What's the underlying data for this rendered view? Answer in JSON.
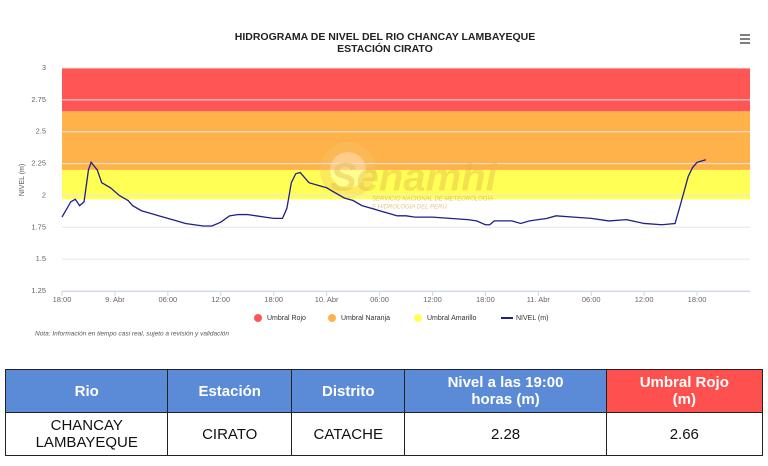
{
  "chart_data": {
    "type": "line",
    "title": "HIDROGRAMA DE NIVEL DEL RIO CHANCAY LAMBAYEQUE",
    "subtitle": "ESTACIÓN CIRATO",
    "y_label": "NIVEL (m)",
    "note": "Nota: Información en tiempo casi real, sujeto a revisión y validación",
    "watermark": [
      "Senamhi",
      "SERVICIO NACIONAL DE METEOROLOGÍA",
      "E HIDROLOGÍA DEL PERÚ"
    ],
    "ylim": [
      1.25,
      3
    ],
    "yticks": [
      1.25,
      1.5,
      1.75,
      2,
      2.25,
      2.5,
      2.75,
      3
    ],
    "xlim": [
      0,
      78
    ],
    "xticks": [
      {
        "value": 0,
        "label": "18:00"
      },
      {
        "value": 6,
        "label": "9. Abr"
      },
      {
        "value": 12,
        "label": "06:00"
      },
      {
        "value": 18,
        "label": "12:00"
      },
      {
        "value": 24,
        "label": "18:00"
      },
      {
        "value": 30,
        "label": "10. Abr"
      },
      {
        "value": 36,
        "label": "06:00"
      },
      {
        "value": 42,
        "label": "12:00"
      },
      {
        "value": 48,
        "label": "18:00"
      },
      {
        "value": 54,
        "label": "11. Abr"
      },
      {
        "value": 60,
        "label": "06:00"
      },
      {
        "value": 66,
        "label": "12:00"
      },
      {
        "value": 72,
        "label": "18:00"
      }
    ],
    "grid": true,
    "bands": [
      {
        "name": "Umbral Rojo",
        "color": "#ff5555",
        "from": 2.66,
        "to": 3
      },
      {
        "name": "Umbral Naranja",
        "color": "#ffb24a",
        "from": 2.2,
        "to": 2.66
      },
      {
        "name": "Umbral Amarillo",
        "color": "#ffff55",
        "from": 1.97,
        "to": 2.2
      }
    ],
    "x": [
      0,
      1,
      1.5,
      2,
      2.5,
      3,
      3.3,
      4,
      4.5,
      5.5,
      6.5,
      7.5,
      8,
      9,
      10,
      11,
      12,
      13,
      14,
      15,
      16,
      17,
      18,
      19,
      20,
      21,
      22,
      23,
      24,
      25,
      25.5,
      26,
      26.5,
      27,
      28,
      29,
      30,
      31,
      32,
      33,
      34,
      35,
      36,
      37,
      38,
      39,
      40,
      42,
      44,
      46,
      47,
      48,
      48.5,
      49,
      51,
      52,
      53,
      54,
      55,
      56,
      58,
      60,
      62,
      64,
      66,
      68,
      69.5,
      70,
      71,
      71.5,
      72,
      73
    ],
    "series": [
      {
        "name": "NIVEL (m)",
        "color": "#1f1f8a",
        "values": [
          1.83,
          1.95,
          1.97,
          1.92,
          1.95,
          2.2,
          2.26,
          2.2,
          2.1,
          2.06,
          2.0,
          1.96,
          1.92,
          1.88,
          1.86,
          1.84,
          1.82,
          1.8,
          1.78,
          1.77,
          1.76,
          1.76,
          1.79,
          1.84,
          1.85,
          1.85,
          1.84,
          1.83,
          1.82,
          1.82,
          1.9,
          2.1,
          2.17,
          2.18,
          2.1,
          2.08,
          2.06,
          2.02,
          1.98,
          1.96,
          1.92,
          1.9,
          1.88,
          1.86,
          1.84,
          1.84,
          1.83,
          1.83,
          1.82,
          1.81,
          1.8,
          1.77,
          1.77,
          1.8,
          1.8,
          1.78,
          1.8,
          1.81,
          1.82,
          1.84,
          1.83,
          1.82,
          1.8,
          1.81,
          1.78,
          1.77,
          1.78,
          1.9,
          2.15,
          2.22,
          2.26,
          2.28
        ]
      }
    ]
  },
  "table": {
    "headers": [
      "Rio",
      "Estación",
      "Distrito",
      "Nivel a las 19:00 horas (m)",
      "Umbral Rojo (m)"
    ],
    "rows": [
      [
        "CHANCAY LAMBAYEQUE",
        "CIRATO",
        "CATACHE",
        "2.28",
        "2.66"
      ]
    ]
  }
}
